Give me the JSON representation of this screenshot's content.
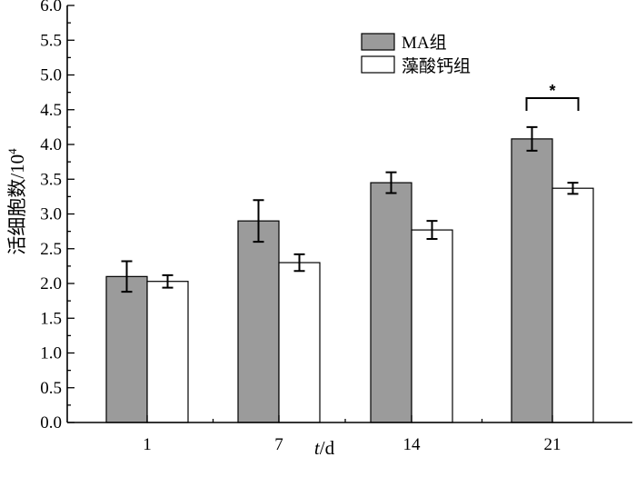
{
  "chart_data": {
    "type": "bar",
    "categories": [
      "1",
      "7",
      "14",
      "21"
    ],
    "series": [
      {
        "name": "MA组",
        "values": [
          2.1,
          2.9,
          3.45,
          4.08
        ],
        "errors": [
          0.22,
          0.3,
          0.15,
          0.17
        ],
        "color": "#9b9b9b"
      },
      {
        "name": "藻酸钙组",
        "values": [
          2.03,
          2.3,
          2.77,
          3.37
        ],
        "errors": [
          0.09,
          0.12,
          0.13,
          0.08
        ],
        "color": "#ffffff"
      }
    ],
    "xlabel_italic": "t",
    "xlabel_rest": "/d",
    "ylabel": "活细胞数/10",
    "ylabel_sup": "4",
    "ylim": [
      0,
      6
    ],
    "yticks": [
      "0.0",
      "0.5",
      "1.0",
      "1.5",
      "2.0",
      "2.5",
      "3.0",
      "3.5",
      "4.0",
      "4.5",
      "5.0",
      "5.5",
      "6.0"
    ],
    "legend_position": "top-right",
    "significance": {
      "category": "21",
      "label": "*"
    }
  }
}
